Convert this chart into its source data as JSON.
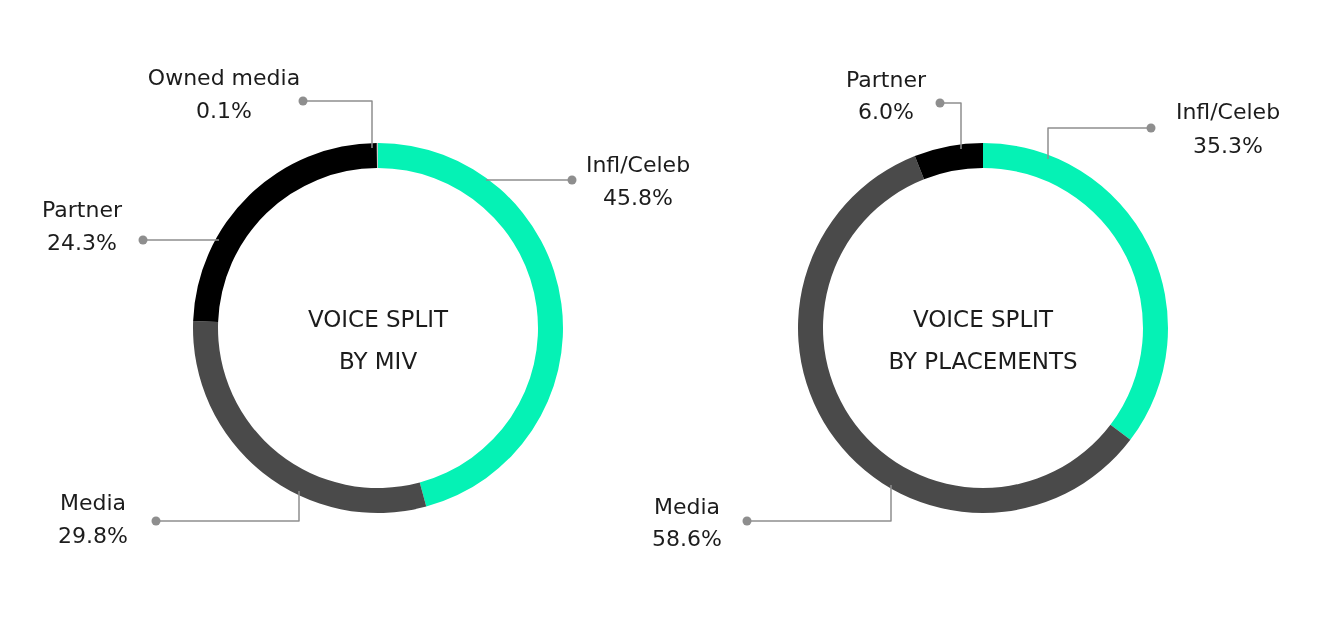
{
  "chart_data": [
    {
      "type": "donut",
      "title": "VOICE SPLIT BY MIV",
      "categories": [
        "Infl/Celeb",
        "Media",
        "Partner",
        "Owned media"
      ],
      "values": [
        45.8,
        29.8,
        24.3,
        0.1
      ],
      "value_labels": [
        "45.8%",
        "29.8%",
        "24.3%",
        "0.1%"
      ],
      "colors": [
        "#05f2b5",
        "#4a4a4a",
        "#000000",
        "#c8c8c8"
      ]
    },
    {
      "type": "donut",
      "title": "VOICE SPLIT BY PLACEMENTS",
      "categories": [
        "Infl/Celeb",
        "Media",
        "Partner"
      ],
      "values": [
        35.3,
        58.6,
        6.0
      ],
      "value_labels": [
        "35.3%",
        "58.6%",
        "6.0%"
      ],
      "colors": [
        "#05f2b5",
        "#4a4a4a",
        "#000000"
      ]
    }
  ]
}
